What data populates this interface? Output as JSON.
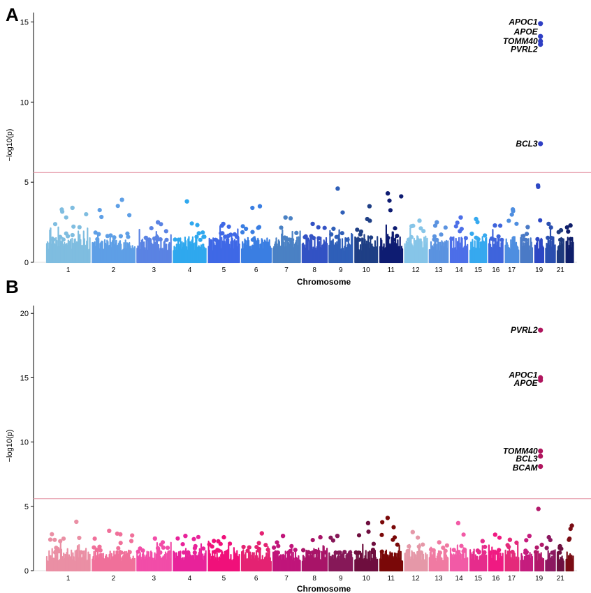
{
  "chart_data": [
    {
      "type": "scatter",
      "panel": "A",
      "xlabel": "Chromosome",
      "ylabel": "−log10(p)",
      "ylim": [
        0,
        15.5
      ],
      "yticks": [
        0,
        5,
        10,
        15
      ],
      "threshold": 5.6,
      "threshold_color": "#e8a3b1",
      "chromosome_labels": [
        "1",
        "2",
        "3",
        "4",
        "5",
        "6",
        "7",
        "8",
        "9",
        "10",
        "11",
        "12",
        "13",
        "14",
        "15",
        "16",
        "17",
        "19",
        "21"
      ],
      "chromosomes": [
        {
          "chr": 1,
          "len": 249,
          "color": "#7fbde0",
          "max": 3.4
        },
        {
          "chr": 2,
          "len": 243,
          "color": "#5e9fe6",
          "max": 3.9
        },
        {
          "chr": 3,
          "len": 198,
          "color": "#5a83e3",
          "max": 2.5
        },
        {
          "chr": 4,
          "len": 191,
          "color": "#2fa8ee",
          "max": 3.8
        },
        {
          "chr": 5,
          "len": 181,
          "color": "#3f68e6",
          "max": 2.4
        },
        {
          "chr": 6,
          "len": 171,
          "color": "#3a7ee2",
          "max": 3.5
        },
        {
          "chr": 7,
          "len": 159,
          "color": "#4a81c4",
          "max": 2.8
        },
        {
          "chr": 8,
          "len": 146,
          "color": "#3352c4",
          "max": 2.4
        },
        {
          "chr": 9,
          "len": 141,
          "color": "#2f5fb8",
          "max": 4.6
        },
        {
          "chr": 10,
          "len": 136,
          "color": "#1f3f85",
          "max": 3.5
        },
        {
          "chr": 11,
          "len": 135,
          "color": "#0e1c72",
          "max": 4.3
        },
        {
          "chr": 12,
          "len": 134,
          "color": "#86c5e8",
          "max": 2.6
        },
        {
          "chr": 13,
          "len": 115,
          "color": "#5b93e0",
          "max": 2.5
        },
        {
          "chr": 14,
          "len": 107,
          "color": "#4c6fe8",
          "max": 2.8
        },
        {
          "chr": 15,
          "len": 102,
          "color": "#36a9ef",
          "max": 2.7
        },
        {
          "chr": 16,
          "len": 90,
          "color": "#3f64dc",
          "max": 2.3
        },
        {
          "chr": 17,
          "len": 83,
          "color": "#4e8ee0",
          "max": 3.3
        },
        {
          "chr": 18,
          "len": 78,
          "color": "#4a7ac6",
          "max": 2.2
        },
        {
          "chr": 19,
          "len": 59,
          "color": "#2c47c4",
          "max": 4.8
        },
        {
          "chr": 20,
          "len": 63,
          "color": "#2a4fb0",
          "max": 2.4
        },
        {
          "chr": 21,
          "len": 48,
          "color": "#1e3a7e",
          "max": 2.0
        },
        {
          "chr": 22,
          "len": 51,
          "color": "#0f1e6a",
          "max": 2.3
        }
      ],
      "annotations": [
        {
          "gene": "APOC1",
          "chr": 19,
          "value": 14.9,
          "label_y": 15.0
        },
        {
          "gene": "APOE",
          "chr": 19,
          "value": 14.1,
          "label_y": 14.4
        },
        {
          "gene": "TOMM40",
          "chr": 19,
          "value": 13.8,
          "label_y": 13.8
        },
        {
          "gene": "PVRL2",
          "chr": 19,
          "value": 13.6,
          "label_y": 13.3
        },
        {
          "gene": "BCL3",
          "chr": 19,
          "value": 7.4,
          "label_y": 7.4
        }
      ],
      "annotation_color": "#2f3fc4"
    },
    {
      "type": "scatter",
      "panel": "B",
      "xlabel": "Chromosome",
      "ylabel": "−log10(p)",
      "ylim": [
        0,
        20.5
      ],
      "yticks": [
        0,
        5,
        10,
        15,
        20
      ],
      "threshold": 5.6,
      "threshold_color": "#e8a3b1",
      "chromosome_labels": [
        "1",
        "2",
        "3",
        "4",
        "5",
        "6",
        "7",
        "8",
        "9",
        "10",
        "11",
        "12",
        "13",
        "14",
        "15",
        "16",
        "17",
        "19",
        "21"
      ],
      "chromosomes": [
        {
          "chr": 1,
          "len": 249,
          "color": "#ea8fa4",
          "max": 3.8
        },
        {
          "chr": 2,
          "len": 243,
          "color": "#f0709a",
          "max": 3.1
        },
        {
          "chr": 3,
          "len": 198,
          "color": "#f24da8",
          "max": 2.5
        },
        {
          "chr": 4,
          "len": 191,
          "color": "#e8229a",
          "max": 2.7
        },
        {
          "chr": 5,
          "len": 181,
          "color": "#f0107a",
          "max": 2.6
        },
        {
          "chr": 6,
          "len": 171,
          "color": "#e42272",
          "max": 2.9
        },
        {
          "chr": 7,
          "len": 159,
          "color": "#c0157a",
          "max": 2.7
        },
        {
          "chr": 8,
          "len": 146,
          "color": "#a81468",
          "max": 2.6
        },
        {
          "chr": 9,
          "len": 141,
          "color": "#861858",
          "max": 2.7
        },
        {
          "chr": 10,
          "len": 136,
          "color": "#6e0e3e",
          "max": 3.7
        },
        {
          "chr": 11,
          "len": 135,
          "color": "#7a0808",
          "max": 4.1
        },
        {
          "chr": 12,
          "len": 134,
          "color": "#e598a8",
          "max": 3.0
        },
        {
          "chr": 13,
          "len": 115,
          "color": "#f07aa2",
          "max": 2.2
        },
        {
          "chr": 14,
          "len": 107,
          "color": "#f25aa6",
          "max": 3.7
        },
        {
          "chr": 15,
          "len": 102,
          "color": "#e62c8c",
          "max": 2.3
        },
        {
          "chr": 16,
          "len": 90,
          "color": "#f01a82",
          "max": 2.8
        },
        {
          "chr": 17,
          "len": 83,
          "color": "#e42a7a",
          "max": 2.4
        },
        {
          "chr": 18,
          "len": 78,
          "color": "#c51d7e",
          "max": 2.7
        },
        {
          "chr": 19,
          "len": 59,
          "color": "#b2186a",
          "max": 4.8
        },
        {
          "chr": 20,
          "len": 63,
          "color": "#8c1860",
          "max": 2.6
        },
        {
          "chr": 21,
          "len": 48,
          "color": "#6e1040",
          "max": 1.9
        },
        {
          "chr": 22,
          "len": 51,
          "color": "#7a0c14",
          "max": 3.5
        }
      ],
      "annotations": [
        {
          "gene": "PVRL2",
          "chr": 19,
          "value": 18.7,
          "label_y": 18.7
        },
        {
          "gene": "APOC1",
          "chr": 19,
          "value": 15.0,
          "label_y": 15.2
        },
        {
          "gene": "APOE",
          "chr": 19,
          "value": 14.8,
          "label_y": 14.6
        },
        {
          "gene": "TOMM40",
          "chr": 19,
          "value": 9.3,
          "label_y": 9.3
        },
        {
          "gene": "BCL3",
          "chr": 19,
          "value": 8.9,
          "label_y": 8.7
        },
        {
          "gene": "BCAM",
          "chr": 19,
          "value": 8.1,
          "label_y": 8.0
        }
      ],
      "annotation_color": "#b0155e"
    }
  ]
}
